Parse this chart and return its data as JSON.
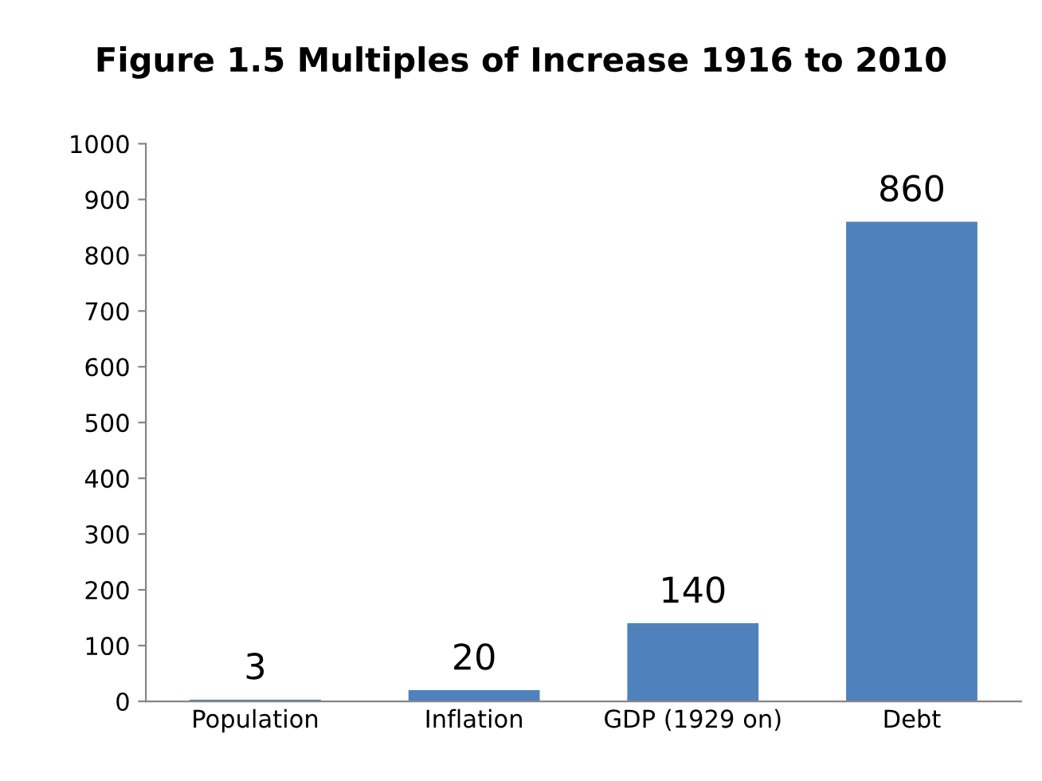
{
  "chart_data": {
    "type": "bar",
    "title": "Figure 1.5 Multiples of Increase 1916 to 2010",
    "categories": [
      "Population",
      "Inflation",
      "GDP (1929 on)",
      "Debt"
    ],
    "values": [
      3,
      20,
      140,
      860
    ],
    "color": "#4f81bd",
    "ylim": [
      0,
      1000
    ],
    "yticks": [
      0,
      100,
      200,
      300,
      400,
      500,
      600,
      700,
      800,
      900,
      1000
    ],
    "data_labels": true,
    "grid": false,
    "legend": false
  }
}
